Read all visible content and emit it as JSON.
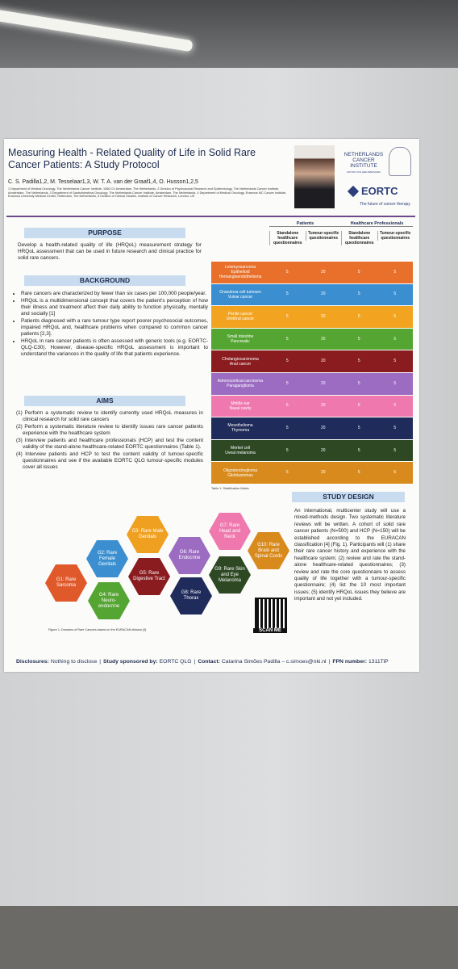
{
  "header": {
    "title": "Measuring Health - Related Quality of Life in Solid Rare Cancer Patients: A Study Protocol",
    "authors": "C. S. Padilla1,2, M. Tesselaar1,3, W. T. A. van der Graaf1,4, O. Husson1,2,5",
    "affiliations": "1 Department of Medical Oncology, The Netherlands Cancer Institute, 1066 CX Amsterdam, The Netherlands, 2 Division of Psychosocial Research and Epidemiology, The Netherlands Cancer Institute, Amsterdam, The Netherlands, 3 Department of Gastrointestinal Oncology, The Netherlands Cancer Institute, Amsterdam, The Netherlands, 4 Department of Medical Oncology, Erasmus MC Cancer Institute, Erasmus University Medical Center, Rotterdam, The Netherlands, 5 Division of Clinical Studies, Institute of Cancer Research, London, UK",
    "logo_institute": "NETHERLANDS CANCER INSTITUTE",
    "logo_sub": "ANTONI VAN LEEUWENHOEK",
    "logo_eortc": "EORTC",
    "logo_tagline": "The future of cancer therapy"
  },
  "purpose": {
    "heading": "PURPOSE",
    "text": "Develop a health-related quality of life (HRQoL) measurement strategy for HRQoL assessment that can be used in future research and clinical practice for solid rare cancers."
  },
  "background": {
    "heading": "BACKGROUND",
    "items": [
      "Rare cancers are characterized by fewer than six cases per 100,000 people/year.",
      "HRQoL is a multidimensional concept that covers the patient's perception of how their illness and treatment affect their daily ability to function physically, mentally and socially [1]",
      "Patients diagnosed with a rare tumour type report poorer psychosocial outcomes, impaired HRQoL and, healthcare problems when compared to common cancer patients [2,3].",
      "HRQoL in rare cancer patients is often assessed with generic tools (e.g. EORTC-QLQ-C30). However, disease-specific HRQoL assessment is important to understand the variances in the quality of life that patients experience."
    ]
  },
  "aims": {
    "heading": "AIMS",
    "items": [
      "(1) Perform a systematic review to identify currently used HRQoL measures in clinical research for solid rare cancers",
      "(2) Perform a systematic literature review to identify issues rare cancer patients experience with the healthcare system",
      "(3) Interview patients and healthcare professionals (HCP) and test the content validity of the stand-alone healthcare-related EORTC questionnaires (Table 1).",
      "(4) Interview patients and HCP to test the content validity of tumour-specific questionnaires and see if the available EORTC QLG tumour-specific modules cover all issues"
    ]
  },
  "table": {
    "group_headers": [
      "Patients",
      "Healthcare Professionals"
    ],
    "column_headers": [
      "Standalone healthcare questionnaires",
      "Tumour-specific questionnaires",
      "Standalone healthcare questionnaires",
      "Tumour-specific questionnaires"
    ],
    "rows": [
      {
        "names": [
          "Leiomyosarcoma",
          "Epithelioid",
          "Hemangioendothelioma"
        ],
        "values": [
          5,
          20,
          5,
          5
        ],
        "color": "#e8702a"
      },
      {
        "names": [
          "Granulosa cell tumours",
          "Vulvar cancer"
        ],
        "values": [
          5,
          20,
          5,
          5
        ],
        "color": "#3b8fd0"
      },
      {
        "names": [
          "Penile cancer",
          "Urethral cancer"
        ],
        "values": [
          5,
          20,
          5,
          5
        ],
        "color": "#f2a421"
      },
      {
        "names": [
          "Small intestine",
          "Pancreatic"
        ],
        "values": [
          5,
          20,
          5,
          5
        ],
        "color": "#55a532"
      },
      {
        "names": [
          "Cholangiocarcinoma",
          "Anal cancer"
        ],
        "values": [
          5,
          20,
          5,
          5
        ],
        "color": "#8a1c1f"
      },
      {
        "names": [
          "Adrenocortical carcinoma",
          "Paraganglioma"
        ],
        "values": [
          5,
          20,
          5,
          5
        ],
        "color": "#9b6cc1"
      },
      {
        "names": [
          "Middle ear",
          "Nasal cavity"
        ],
        "values": [
          5,
          20,
          5,
          5
        ],
        "color": "#ef79ae"
      },
      {
        "names": [
          "Mesothelioma",
          "Thymoma"
        ],
        "values": [
          5,
          20,
          5,
          5
        ],
        "color": "#1f2b5a"
      },
      {
        "names": [
          "Merkel cell",
          "Uveal melanoma"
        ],
        "values": [
          5,
          20,
          5,
          5
        ],
        "color": "#2d4823"
      },
      {
        "names": [
          "Oligodendroglioma",
          "Glioblastomas"
        ],
        "values": [
          5,
          20,
          5,
          5
        ],
        "color": "#d88a1d"
      }
    ],
    "caption": "Table 1. Stratification Matrix"
  },
  "figure": {
    "hexagons": [
      {
        "label": "G1: Rare Sarcoma",
        "color": "#e0592a"
      },
      {
        "label": "G2: Rare Female Genitals",
        "color": "#3b8fd0"
      },
      {
        "label": "G3: Rare Male Genitals",
        "color": "#f0a020"
      },
      {
        "label": "G4: Rare Neuro-endocrine",
        "color": "#55a532"
      },
      {
        "label": "G5: Rare Digestive Tract",
        "color": "#8a1c1f"
      },
      {
        "label": "G6: Rare Endocrine",
        "color": "#9b6cc1"
      },
      {
        "label": "G7: Rare Head and Neck",
        "color": "#ef79ae"
      },
      {
        "label": "G8: Rare Thorax",
        "color": "#1f2b5a"
      },
      {
        "label": "G9: Rare Skin and Eye Melanoma",
        "color": "#2d4823"
      },
      {
        "label": "G10: Rare Brain and Spinal Cords",
        "color": "#d88a1d"
      }
    ],
    "caption": "Figure 1. Domains of Rare Cancers based on the EURACAN division [4]",
    "qr_label": "SCAN ME"
  },
  "study_design": {
    "heading": "STUDY DESIGN",
    "text": "An international, multicenter study will use a mixed-methods design. Two systematic literature reviews will be written. A cohort of solid rare cancer patients (N=500) and HCP (N=150) will be established according to the EURACAN classification [4] (Fig. 1). Participants will (1) share their rare cancer history and experience with the healthcare system; (2) review and rate the stand-alone healthcare-related questionnaires; (3) review and rate the core questionnaire to assess quality of life together with a tumour-specific questionnaire; (4) list the 10 most important issues; (5) identify HRQoL issues they believe are important and not yet included."
  },
  "footer": [
    {
      "label": "Disclosures:",
      "text": "Nothing to disclose"
    },
    {
      "label": "Study sponsored by:",
      "text": "EORTC QLG"
    },
    {
      "label": "Contact:",
      "text": "Catarina Simões Padilla – c.simoes@nki.nl"
    },
    {
      "label": "FPN number:",
      "text": "1311TiP"
    }
  ]
}
